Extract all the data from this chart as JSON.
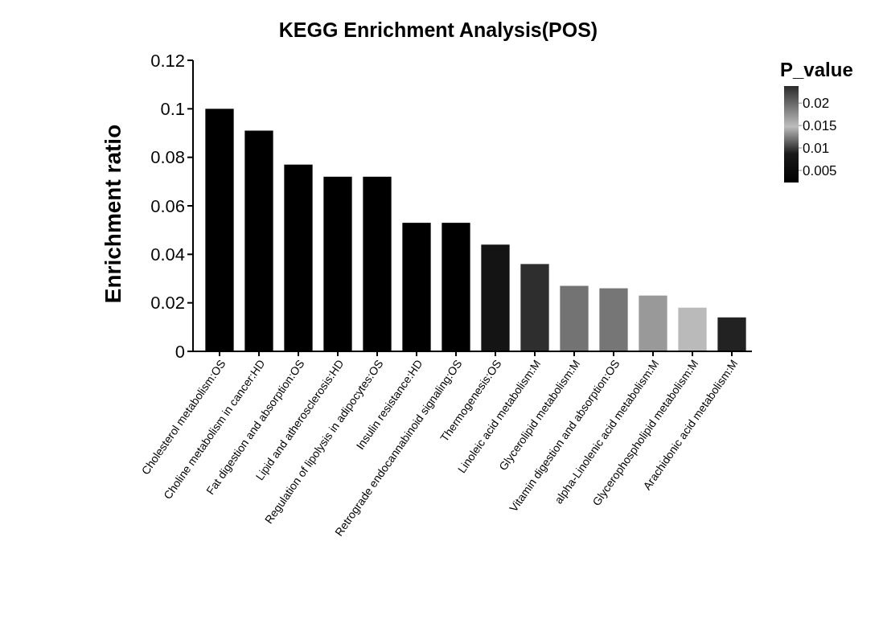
{
  "chart_data": {
    "type": "bar",
    "title": "KEGG Enrichment Analysis(POS)",
    "ylabel": "Enrichment ratio",
    "clabel": "P_value",
    "categories": [
      "Cholesterol metabolism:OS",
      "Choline metabolism in cancer:HD",
      "Fat digestion and absorption:OS",
      "Lipid and atherosclerosis:HD",
      "Regulation of lipolysis in adipocytes:OS",
      "Insulin resistance:HD",
      "Retrograde endocannabinoid signaling:OS",
      "Thermogenesis:OS",
      "Linoleic acid metabolism:M",
      "Glycerolipid metabolism:M",
      "Vitamin digestion and absorption:OS",
      "alpha-Linolenic acid metabolism:M",
      "Glycerophospholipid metabolism:M",
      "Arachidonic acid metabolism:M"
    ],
    "values": [
      0.1,
      0.091,
      0.077,
      0.072,
      0.072,
      0.053,
      0.053,
      0.044,
      0.036,
      0.027,
      0.026,
      0.023,
      0.018,
      0.014
    ],
    "colors": [
      "#000000",
      "#000000",
      "#000000",
      "#000000",
      "#000000",
      "#000000",
      "#000000",
      "#141414",
      "#2e2e2e",
      "#737373",
      "#767676",
      "#999999",
      "#bababa",
      "#222222"
    ],
    "ylim": [
      0,
      0.12
    ],
    "yticks": [
      0,
      0.02,
      0.04,
      0.06,
      0.08,
      0.1,
      0.12
    ],
    "clim": [
      0.0023,
      0.0238
    ],
    "cticks": [
      0.005,
      0.01,
      0.015,
      0.02
    ],
    "grid": false
  }
}
